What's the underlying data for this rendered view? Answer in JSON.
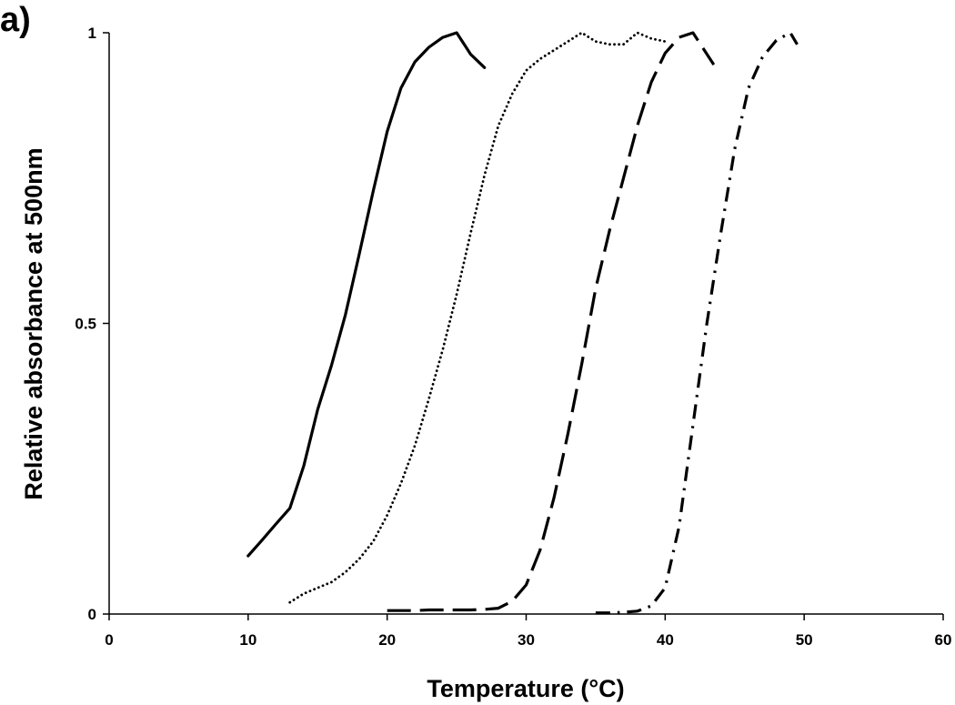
{
  "panel_label": "a)",
  "chart_data": {
    "type": "line",
    "title": "",
    "xlabel": "Temperature (°C)",
    "ylabel": "Relative absorbance at 500nm",
    "xlim": [
      0,
      60
    ],
    "ylim": [
      0,
      1
    ],
    "xticks": [
      0,
      10,
      20,
      30,
      40,
      50,
      60
    ],
    "xtick_labels": [
      "0",
      "10",
      "20",
      "30",
      "40",
      "50",
      "60"
    ],
    "yticks": [
      0,
      0.5,
      1
    ],
    "ytick_labels": [
      "0",
      "0.5",
      "1"
    ],
    "grid": false,
    "legend": "none",
    "series": [
      {
        "style": "solid",
        "x": [
          10,
          11,
          12,
          13,
          14,
          15,
          16,
          17,
          18,
          19,
          20,
          21,
          22,
          23,
          24,
          25,
          26,
          27
        ],
        "y": [
          0.1,
          0.127,
          0.155,
          0.182,
          0.255,
          0.352,
          0.428,
          0.515,
          0.62,
          0.728,
          0.83,
          0.905,
          0.95,
          0.975,
          0.992,
          1.0,
          0.963,
          0.94
        ]
      },
      {
        "style": "dotted",
        "x": [
          13,
          14,
          15,
          16,
          17,
          18,
          19,
          20,
          21,
          22,
          23,
          24,
          25,
          26,
          27,
          28,
          29,
          30,
          31,
          32,
          33,
          34,
          35,
          36,
          37,
          38,
          39,
          40
        ],
        "y": [
          0.02,
          0.035,
          0.045,
          0.055,
          0.072,
          0.095,
          0.125,
          0.17,
          0.225,
          0.29,
          0.37,
          0.455,
          0.55,
          0.655,
          0.755,
          0.84,
          0.895,
          0.935,
          0.955,
          0.97,
          0.985,
          1.0,
          0.985,
          0.98,
          0.98,
          1.0,
          0.99,
          0.985
        ]
      },
      {
        "style": "dashed",
        "x": [
          20,
          21,
          22,
          23,
          24,
          25,
          26,
          27,
          28,
          29,
          30,
          31,
          32,
          33,
          34,
          35,
          36,
          37,
          38,
          39,
          40,
          41,
          42,
          43.5
        ],
        "y": [
          0.006,
          0.006,
          0.006,
          0.007,
          0.007,
          0.007,
          0.007,
          0.008,
          0.01,
          0.022,
          0.05,
          0.11,
          0.2,
          0.31,
          0.43,
          0.56,
          0.66,
          0.75,
          0.84,
          0.915,
          0.965,
          0.992,
          1.0,
          0.945
        ]
      },
      {
        "style": "dashdot",
        "x": [
          35,
          36,
          37,
          38,
          39,
          40,
          41,
          42,
          43,
          44,
          45,
          46,
          47,
          48,
          49,
          49.5
        ],
        "y": [
          0.002,
          0.002,
          0.003,
          0.005,
          0.014,
          0.045,
          0.15,
          0.325,
          0.5,
          0.655,
          0.8,
          0.905,
          0.958,
          0.987,
          1.0,
          0.98
        ]
      }
    ]
  }
}
